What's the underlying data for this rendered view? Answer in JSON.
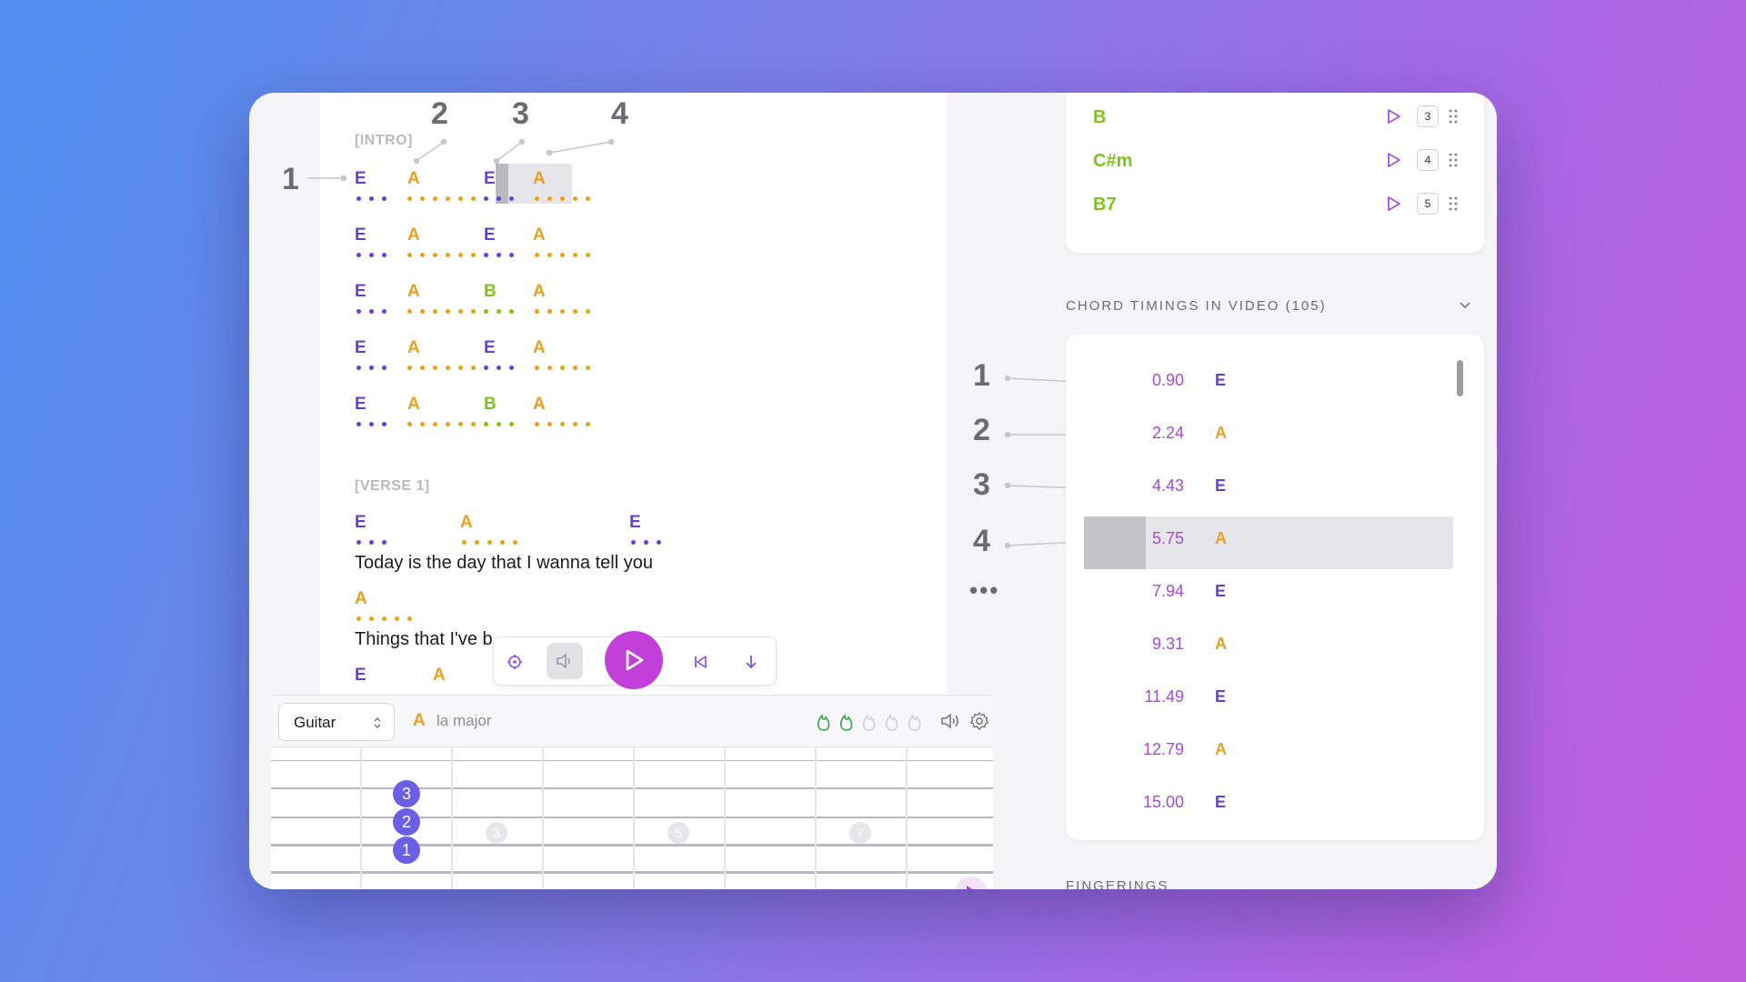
{
  "lyrics": {
    "intro_label": "[INTRO]",
    "verse_label": "[VERSE 1]",
    "intro_lines": [
      [
        "E",
        "A",
        "E",
        "A"
      ],
      [
        "E",
        "A",
        "E",
        "A"
      ],
      [
        "E",
        "A",
        "B",
        "A"
      ],
      [
        "E",
        "A",
        "E",
        "A"
      ],
      [
        "E",
        "A",
        "B",
        "A"
      ]
    ],
    "verse": {
      "line1_chords": [
        "E",
        "A",
        "E"
      ],
      "line1_text": "Today is the day that I wanna tell you",
      "line2_chord": "A",
      "line2_text": "Things that I've b",
      "line3_chords": [
        "E",
        "A"
      ]
    }
  },
  "callouts": {
    "left": [
      "1",
      "2",
      "3",
      "4"
    ],
    "right": [
      "1",
      "2",
      "3",
      "4"
    ],
    "more": "•••"
  },
  "player": {
    "buttons": [
      "target-icon",
      "speaker-icon",
      "play-icon",
      "skip-back-icon",
      "download-icon"
    ]
  },
  "instrument_bar": {
    "instrument": "Guitar",
    "current_chord": "A",
    "current_chord_name": "la major",
    "difficulty_level": 2,
    "difficulty_max": 5
  },
  "fretboard": {
    "fingers": [
      "3",
      "2",
      "1"
    ],
    "fret_markers": [
      "3",
      "5",
      "7"
    ]
  },
  "chord_list": [
    {
      "name": "B",
      "key": "3"
    },
    {
      "name": "C#m",
      "key": "4"
    },
    {
      "name": "B7",
      "key": "5"
    }
  ],
  "timings": {
    "title": "CHORD TIMINGS IN VIDEO (105)",
    "rows": [
      {
        "time": "0.90",
        "chord": "E"
      },
      {
        "time": "2.24",
        "chord": "A"
      },
      {
        "time": "4.43",
        "chord": "E"
      },
      {
        "time": "5.75",
        "chord": "A"
      },
      {
        "time": "7.94",
        "chord": "E"
      },
      {
        "time": "9.31",
        "chord": "A"
      },
      {
        "time": "11.49",
        "chord": "E"
      },
      {
        "time": "12.79",
        "chord": "A"
      },
      {
        "time": "15.00",
        "chord": "E"
      }
    ],
    "selected_index": 3
  },
  "fingerings": {
    "title": "FINGERINGS"
  },
  "colors": {
    "E": "#6a3fd0",
    "A": "#e8a020",
    "B": "#7ec41d",
    "accent": "#c340d8"
  }
}
